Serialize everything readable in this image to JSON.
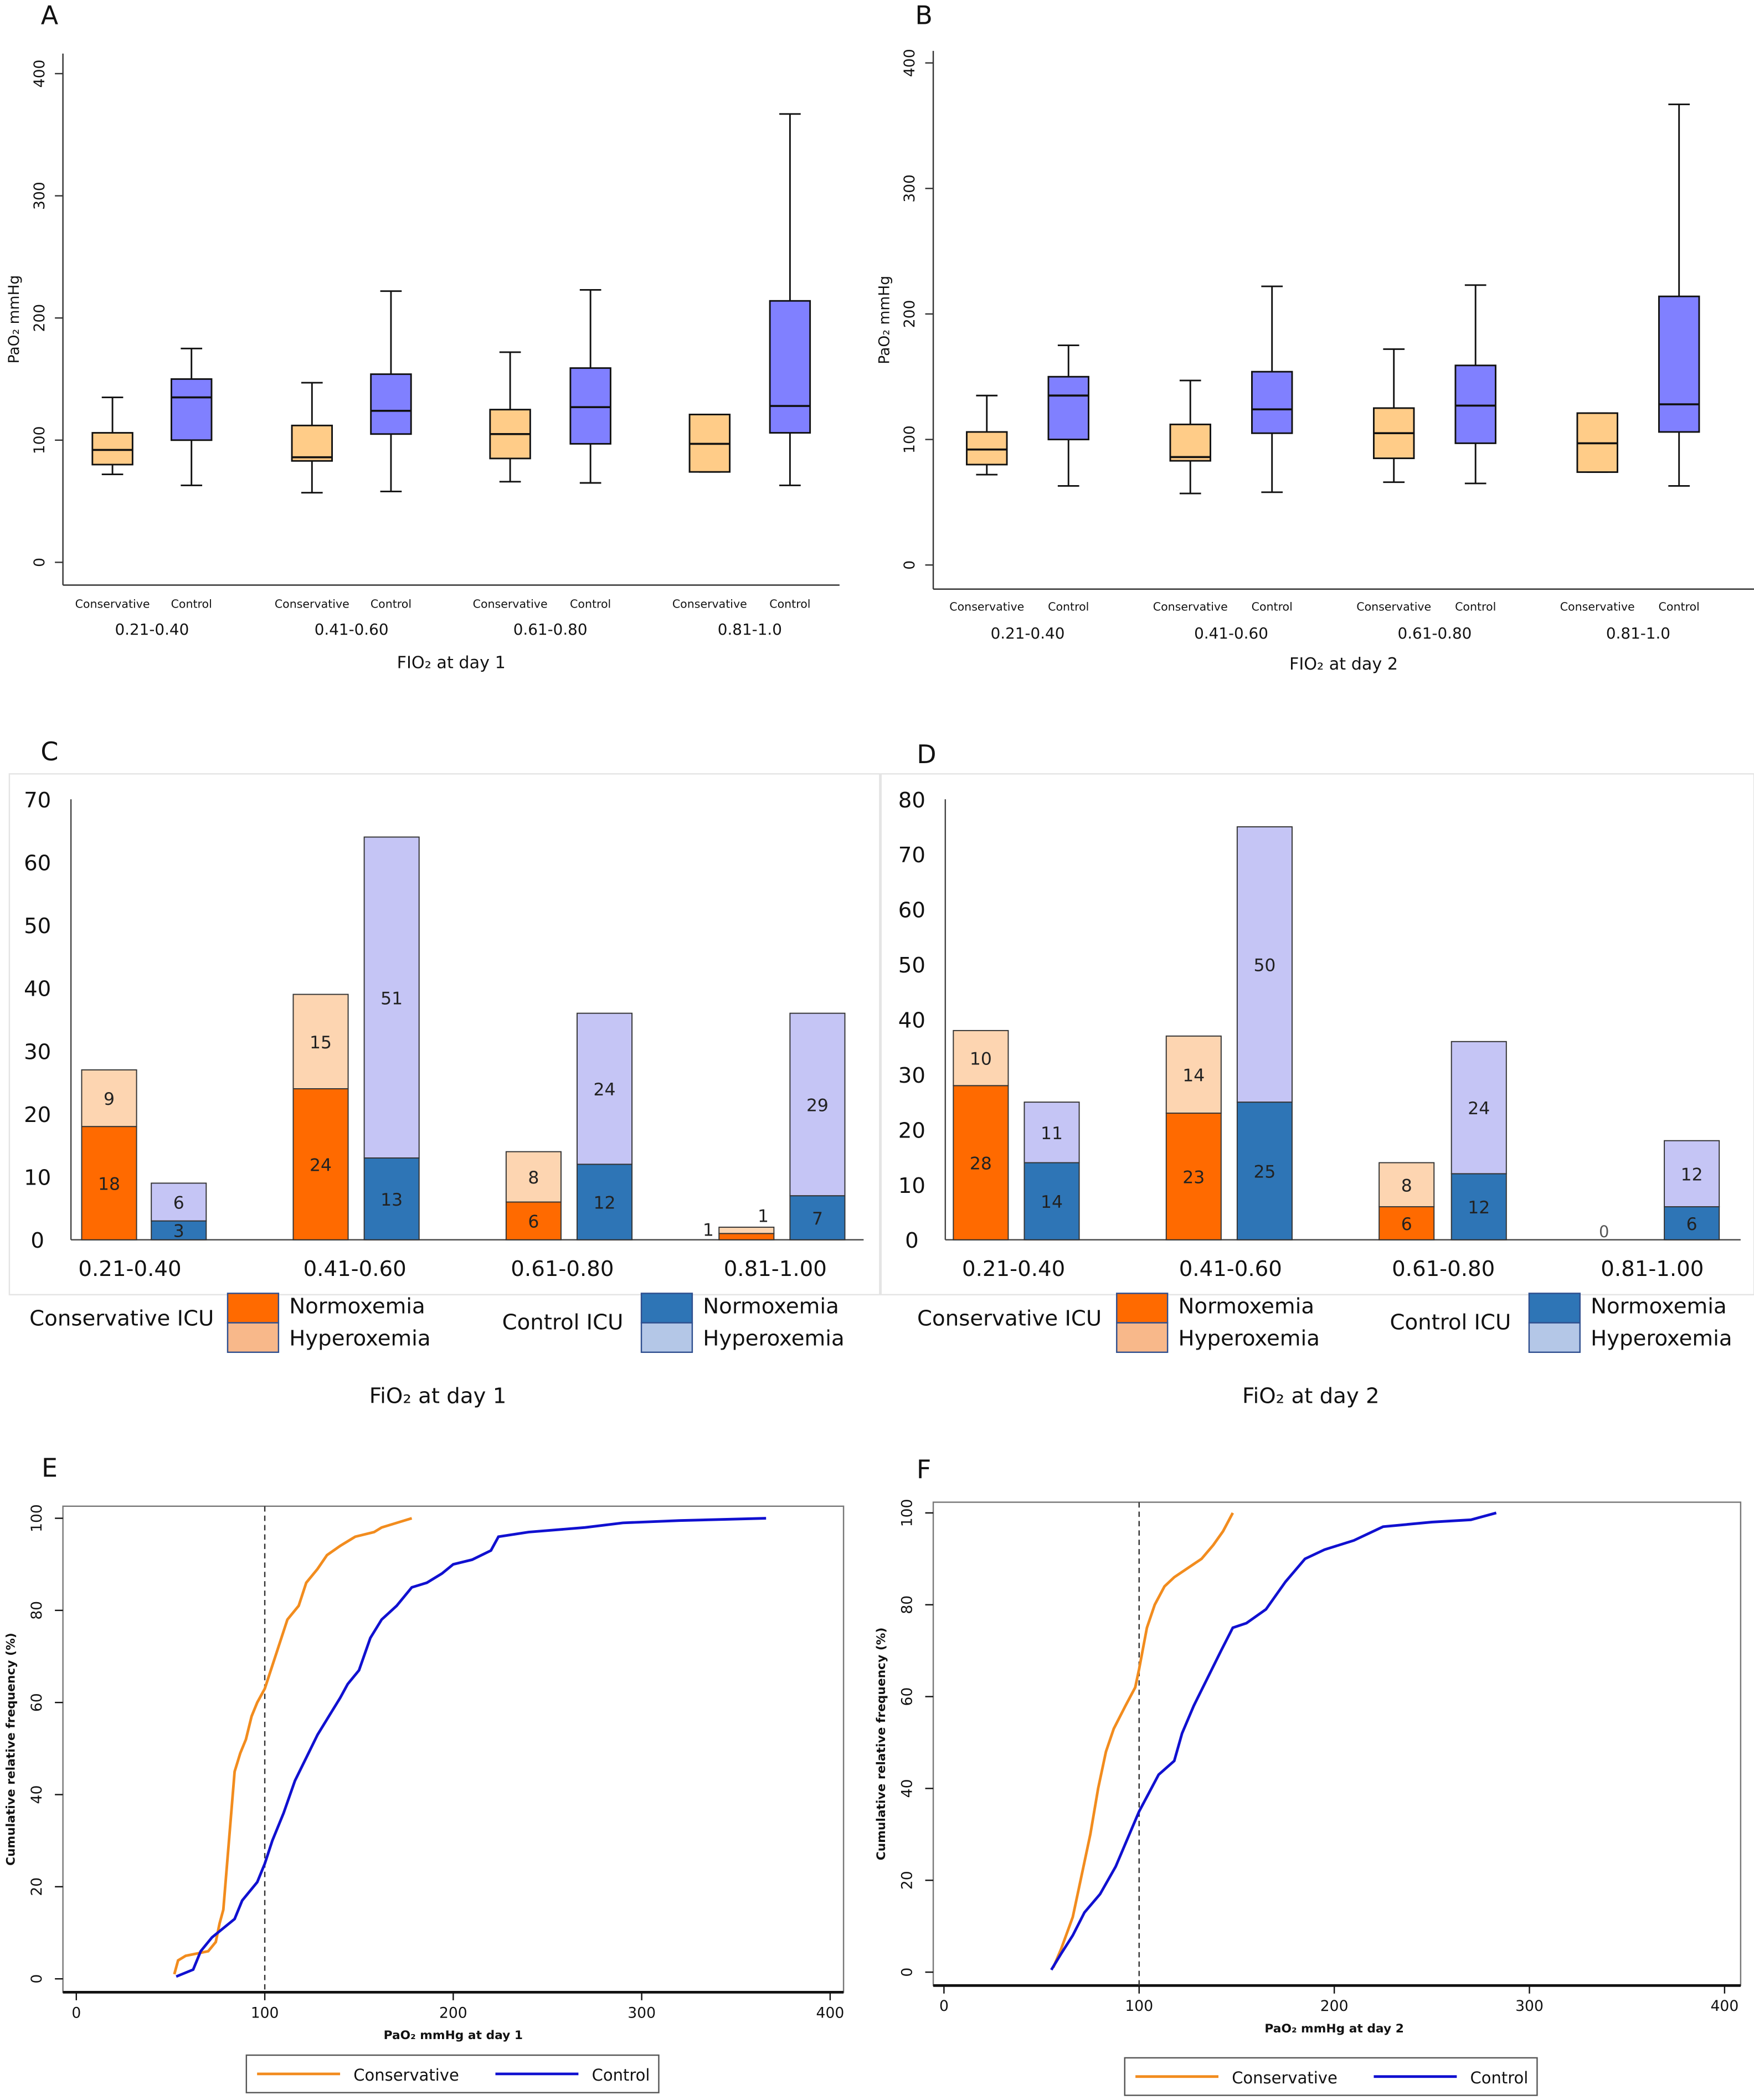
{
  "colors": {
    "conservative_box": "#ffcc88",
    "control_box": "#8080ff",
    "cons_normo": "#ff6a00",
    "cons_hyper": "#fdd5b1",
    "ctrl_normo": "#2e75b6",
    "ctrl_hyper": "#c5c5f5",
    "cdf_conservative": "#f28c1e",
    "cdf_control": "#1010d0"
  },
  "chart_data": [
    {
      "panel": "A",
      "type": "box",
      "ylabel": "PaO₂ mmHg",
      "xlabel": "FIO₂ at day 1",
      "ylim": [
        0,
        400
      ],
      "yticks": [
        0,
        100,
        200,
        300,
        400
      ],
      "groups": [
        "0.21-0.40",
        "0.41-0.60",
        "0.61-0.80",
        "0.81-1.0"
      ],
      "series_labels": [
        "Conservative",
        "Control"
      ],
      "boxes": [
        [
          {
            "min": 72,
            "q1": 80,
            "median": 92,
            "q3": 106,
            "max": 135
          },
          {
            "min": 63,
            "q1": 100,
            "median": 135,
            "q3": 150,
            "max": 175
          }
        ],
        [
          {
            "min": 57,
            "q1": 83,
            "median": 86,
            "q3": 112,
            "max": 147
          },
          {
            "min": 58,
            "q1": 105,
            "median": 124,
            "q3": 154,
            "max": 222
          }
        ],
        [
          {
            "min": 66,
            "q1": 85,
            "median": 105,
            "q3": 125,
            "max": 172
          },
          {
            "min": 65,
            "q1": 97,
            "median": 127,
            "q3": 159,
            "max": 223
          }
        ],
        [
          {
            "min": 74,
            "q1": 74,
            "median": 97,
            "q3": 121,
            "max": 121
          },
          {
            "min": 63,
            "q1": 106,
            "median": 128,
            "q3": 214,
            "max": 367
          }
        ]
      ]
    },
    {
      "panel": "B",
      "type": "box",
      "ylabel": "PaO₂ mmHg",
      "xlabel": "FIO₂ at day 2",
      "ylim": [
        0,
        400
      ],
      "yticks": [
        0,
        100,
        200,
        300,
        400
      ],
      "groups": [
        "0.21-0.40",
        "0.41-0.60",
        "0.61-0.80",
        "0.81-1.0"
      ],
      "series_labels": [
        "Conservative",
        "Control"
      ],
      "boxes": [
        [
          {
            "min": 72,
            "q1": 80,
            "median": 92,
            "q3": 106,
            "max": 135
          },
          {
            "min": 63,
            "q1": 100,
            "median": 135,
            "q3": 150,
            "max": 175
          }
        ],
        [
          {
            "min": 57,
            "q1": 83,
            "median": 86,
            "q3": 112,
            "max": 147
          },
          {
            "min": 58,
            "q1": 105,
            "median": 124,
            "q3": 154,
            "max": 222
          }
        ],
        [
          {
            "min": 66,
            "q1": 85,
            "median": 105,
            "q3": 125,
            "max": 172
          },
          {
            "min": 65,
            "q1": 97,
            "median": 127,
            "q3": 159,
            "max": 223
          }
        ],
        [
          {
            "min": 74,
            "q1": 74,
            "median": 97,
            "q3": 121,
            "max": 121
          },
          {
            "min": 63,
            "q1": 106,
            "median": 128,
            "q3": 214,
            "max": 367
          }
        ]
      ]
    },
    {
      "panel": "C",
      "type": "bar",
      "stacked": true,
      "xlabel": "FiO₂ at day 1",
      "ylim": [
        0,
        70
      ],
      "yticks": [
        0,
        10,
        20,
        30,
        40,
        50,
        60,
        70
      ],
      "categories": [
        "0.21-0.40",
        "0.41-0.60",
        "0.61-0.80",
        "0.81-1.00"
      ],
      "legend": {
        "conservative": "Conservative  ICU",
        "control": "Control ICU",
        "normo": "Normoxemia",
        "hyper": "Hyperoxemia"
      },
      "series": [
        {
          "group": "Conservative ICU",
          "name": "Normoxemia",
          "values": [
            18,
            24,
            6,
            1
          ]
        },
        {
          "group": "Conservative ICU",
          "name": "Hyperoxemia",
          "values": [
            9,
            15,
            8,
            1
          ]
        },
        {
          "group": "Control ICU",
          "name": "Normoxemia",
          "values": [
            3,
            13,
            12,
            7
          ]
        },
        {
          "group": "Control ICU",
          "name": "Hyperoxemia",
          "values": [
            6,
            51,
            24,
            29
          ]
        }
      ]
    },
    {
      "panel": "D",
      "type": "bar",
      "stacked": true,
      "xlabel": "FiO₂ at day 2",
      "ylim": [
        0,
        80
      ],
      "yticks": [
        0,
        10,
        20,
        30,
        40,
        50,
        60,
        70,
        80
      ],
      "categories": [
        "0.21-0.40",
        "0.41-0.60",
        "0.61-0.80",
        "0.81-1.00"
      ],
      "legend": {
        "conservative": "Conservative  ICU",
        "control": "Control ICU",
        "normo": "Normoxemia",
        "hyper": "Hyperoxemia"
      },
      "series": [
        {
          "group": "Conservative ICU",
          "name": "Normoxemia",
          "values": [
            28,
            23,
            6,
            0
          ]
        },
        {
          "group": "Conservative ICU",
          "name": "Hyperoxemia",
          "values": [
            10,
            14,
            8,
            0
          ]
        },
        {
          "group": "Control ICU",
          "name": "Normoxemia",
          "values": [
            14,
            25,
            12,
            6
          ]
        },
        {
          "group": "Control ICU",
          "name": "Hyperoxemia",
          "values": [
            11,
            50,
            24,
            12
          ]
        }
      ]
    },
    {
      "panel": "E",
      "type": "line",
      "ylabel": "Cumulative relative frequency (%)",
      "xlabel": "PaO₂ mmHg at day 1",
      "xlim": [
        0,
        400
      ],
      "ylim": [
        0,
        100
      ],
      "xticks": [
        0,
        100,
        200,
        300,
        400
      ],
      "yticks": [
        0,
        20,
        40,
        60,
        80,
        100
      ],
      "reference_line_x": 100,
      "legend_position": "bottom",
      "series": [
        {
          "name": "Conservative",
          "points": [
            [
              52,
              1
            ],
            [
              54,
              4
            ],
            [
              58,
              5
            ],
            [
              70,
              6
            ],
            [
              74,
              8
            ],
            [
              76,
              12
            ],
            [
              78,
              15
            ],
            [
              80,
              25
            ],
            [
              82,
              35
            ],
            [
              84,
              45
            ],
            [
              87,
              49
            ],
            [
              90,
              52
            ],
            [
              93,
              57
            ],
            [
              96,
              60
            ],
            [
              100,
              63
            ],
            [
              104,
              68
            ],
            [
              108,
              73
            ],
            [
              112,
              78
            ],
            [
              118,
              81
            ],
            [
              122,
              86
            ],
            [
              128,
              89
            ],
            [
              133,
              92
            ],
            [
              140,
              94
            ],
            [
              148,
              96
            ],
            [
              158,
              97
            ],
            [
              162,
              98
            ],
            [
              170,
              99
            ],
            [
              178,
              100
            ]
          ]
        },
        {
          "name": "Control",
          "points": [
            [
              53,
              0.5
            ],
            [
              62,
              2
            ],
            [
              66,
              6
            ],
            [
              72,
              9
            ],
            [
              78,
              11
            ],
            [
              84,
              13
            ],
            [
              88,
              17
            ],
            [
              96,
              21
            ],
            [
              100,
              25
            ],
            [
              104,
              30
            ],
            [
              110,
              36
            ],
            [
              116,
              43
            ],
            [
              122,
              48
            ],
            [
              128,
              53
            ],
            [
              134,
              57
            ],
            [
              140,
              61
            ],
            [
              144,
              64
            ],
            [
              150,
              67
            ],
            [
              156,
              74
            ],
            [
              162,
              78
            ],
            [
              170,
              81
            ],
            [
              178,
              85
            ],
            [
              186,
              86
            ],
            [
              194,
              88
            ],
            [
              200,
              90
            ],
            [
              210,
              91
            ],
            [
              220,
              93
            ],
            [
              224,
              96
            ],
            [
              240,
              97
            ],
            [
              270,
              98
            ],
            [
              290,
              99
            ],
            [
              320,
              99.5
            ],
            [
              366,
              100
            ]
          ]
        }
      ]
    },
    {
      "panel": "F",
      "type": "line",
      "ylabel": "Cumulative relative frequency (%)",
      "xlabel": "PaO₂ mmHg at day 2",
      "xlim": [
        0,
        400
      ],
      "ylim": [
        0,
        100
      ],
      "xticks": [
        0,
        100,
        200,
        300,
        400
      ],
      "yticks": [
        0,
        20,
        40,
        60,
        80,
        100
      ],
      "reference_line_x": 100,
      "legend_position": "bottom",
      "series": [
        {
          "name": "Conservative",
          "points": [
            [
              56,
              1
            ],
            [
              60,
              5
            ],
            [
              66,
              12
            ],
            [
              70,
              20
            ],
            [
              75,
              30
            ],
            [
              79,
              40
            ],
            [
              83,
              48
            ],
            [
              87,
              53
            ],
            [
              93,
              58
            ],
            [
              98,
              62
            ],
            [
              100,
              66
            ],
            [
              104,
              75
            ],
            [
              108,
              80
            ],
            [
              113,
              84
            ],
            [
              118,
              86
            ],
            [
              125,
              88
            ],
            [
              132,
              90
            ],
            [
              138,
              93
            ],
            [
              143,
              96
            ],
            [
              148,
              100
            ]
          ]
        },
        {
          "name": "Control",
          "points": [
            [
              55,
              0.5
            ],
            [
              60,
              4
            ],
            [
              66,
              8
            ],
            [
              72,
              13
            ],
            [
              80,
              17
            ],
            [
              88,
              23
            ],
            [
              95,
              30
            ],
            [
              100,
              35
            ],
            [
              105,
              39
            ],
            [
              110,
              43
            ],
            [
              118,
              46
            ],
            [
              122,
              52
            ],
            [
              128,
              58
            ],
            [
              135,
              64
            ],
            [
              142,
              70
            ],
            [
              148,
              75
            ],
            [
              155,
              76
            ],
            [
              165,
              79
            ],
            [
              175,
              85
            ],
            [
              185,
              90
            ],
            [
              195,
              92
            ],
            [
              210,
              94
            ],
            [
              225,
              97
            ],
            [
              250,
              98
            ],
            [
              270,
              98.5
            ],
            [
              283,
              100
            ]
          ]
        }
      ]
    }
  ]
}
